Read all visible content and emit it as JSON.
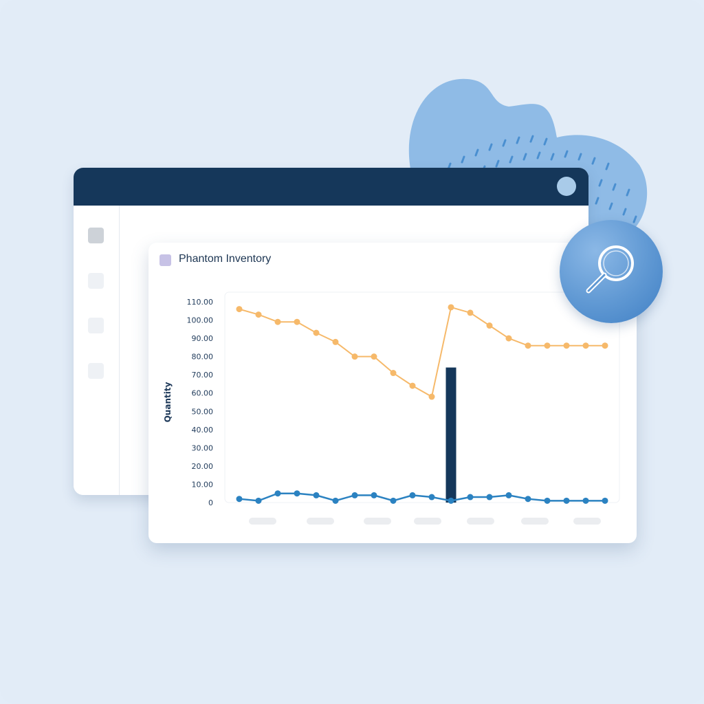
{
  "card": {
    "title": "Phantom Inventory"
  },
  "icons": {
    "window_control": "circle-icon",
    "search": "magnifier-icon",
    "legend": "square-swatch-icon"
  },
  "colors": {
    "background": "#e3edf8",
    "titlebar": "#15375a",
    "series_orange": "#f6b96a",
    "series_blue": "#2b82c1",
    "bar": "#15375a",
    "blob": "#8fbbe6"
  },
  "chart_data": {
    "type": "line",
    "title": "",
    "xlabel": "",
    "ylabel": "Quantity",
    "ylim": [
      0,
      110
    ],
    "yticks": [
      "0",
      "10.00",
      "20.00",
      "30.00",
      "40.00",
      "50.00",
      "60.00",
      "70.00",
      "80.00",
      "90.00",
      "100.00",
      "110.00"
    ],
    "x": [
      1,
      2,
      3,
      4,
      5,
      6,
      7,
      8,
      9,
      10,
      11,
      12,
      13,
      14,
      15,
      16,
      17,
      18,
      19,
      20
    ],
    "series": [
      {
        "values": [
          106,
          103,
          99,
          99,
          93,
          88,
          80,
          80,
          71,
          64,
          58,
          107,
          104,
          97,
          90,
          86,
          86,
          86,
          86,
          86
        ]
      },
      {
        "values": [
          2,
          1,
          5,
          5,
          4,
          1,
          4,
          4,
          1,
          4,
          3,
          1,
          3,
          3,
          4,
          2,
          1,
          1,
          1,
          1
        ]
      }
    ],
    "bar": {
      "x": 12,
      "value": 74
    },
    "grid": false,
    "legend": "none"
  }
}
